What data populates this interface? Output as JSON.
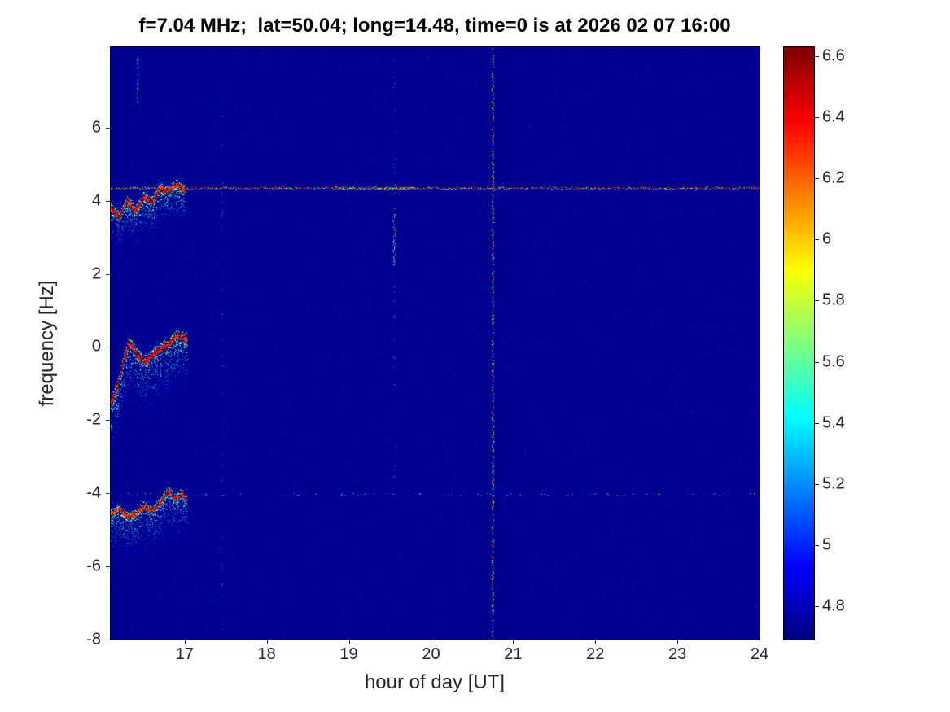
{
  "chart_data": {
    "type": "heatmap",
    "title": "f=7.04 MHz;  lat=50.04; long=14.48, time=0 is at 2026 02 07 16:00",
    "xlabel": "hour of day [UT]",
    "ylabel": "frequency [Hz]",
    "x_range": [
      16.1,
      24
    ],
    "y_range": [
      -8,
      8.2
    ],
    "x_ticks": [
      17,
      18,
      19,
      20,
      21,
      22,
      23,
      24
    ],
    "y_ticks": [
      -8,
      -6,
      -4,
      -2,
      0,
      2,
      4,
      6
    ],
    "grid": false,
    "colormap": "jet",
    "background_value": 4.72,
    "colorbar": {
      "position": "right",
      "range": [
        4.69,
        6.63
      ],
      "ticks": [
        4.8,
        5,
        5.2,
        5.4,
        5.6,
        5.8,
        6,
        6.2,
        6.4,
        6.6
      ]
    },
    "features": [
      {
        "kind": "noise",
        "density": 0.004,
        "v": [
          4.78,
          5.05
        ]
      },
      {
        "kind": "hline",
        "y": 4.35,
        "x0": 16.1,
        "x1": 24.0,
        "density": 0.93,
        "v": [
          5.6,
          6.6
        ],
        "vpow": 0.55,
        "jitter": 1.0
      },
      {
        "kind": "hline",
        "y": 4.35,
        "x0": 16.1,
        "x1": 24.0,
        "density": 0.28,
        "v": [
          4.9,
          5.7
        ],
        "vpow": 1.2,
        "jitter": 2.4
      },
      {
        "kind": "hline",
        "y": 4.35,
        "x0": 18.8,
        "x1": 19.8,
        "density": 0.85,
        "v": [
          5.3,
          6.3
        ],
        "vpow": 1.0,
        "jitter": 2.0
      },
      {
        "kind": "hline",
        "y": -4.02,
        "x0": 16.1,
        "x1": 24.0,
        "density": 0.22,
        "v": [
          4.85,
          5.9
        ],
        "vpow": 2.2,
        "jitter": 1.1
      },
      {
        "kind": "vline",
        "x": 20.75,
        "y0": -8.0,
        "y1": 8.2,
        "density": 0.8,
        "v": [
          4.9,
          6.6
        ],
        "vpow": 1.9,
        "jitter": 1.4
      },
      {
        "kind": "vline",
        "x": 20.75,
        "y0": -8.0,
        "y1": 8.2,
        "density": 0.28,
        "v": [
          5.9,
          6.6
        ],
        "vpow": 1.0,
        "jitter": 0.7
      },
      {
        "kind": "vline",
        "x": 19.55,
        "y0": 2.25,
        "y1": 3.65,
        "density": 0.7,
        "v": [
          5.0,
          6.05
        ],
        "vpow": 1.1,
        "jitter": 1.8
      },
      {
        "kind": "vline",
        "x": 19.55,
        "y0": -4.1,
        "y1": 2.25,
        "density": 0.13,
        "v": [
          4.85,
          5.5
        ],
        "vpow": 1.6,
        "jitter": 1.5
      },
      {
        "kind": "vline",
        "x": 19.55,
        "y0": 3.65,
        "y1": 7.9,
        "density": 0.16,
        "v": [
          4.85,
          5.5
        ],
        "vpow": 1.6,
        "jitter": 1.5
      },
      {
        "kind": "vline",
        "x": 17.45,
        "y0": -8.0,
        "y1": 8.2,
        "density": 0.1,
        "v": [
          4.85,
          5.35
        ],
        "vpow": 1.6,
        "jitter": 1.2
      },
      {
        "kind": "vline",
        "x": 16.42,
        "y0": 6.7,
        "y1": 7.9,
        "density": 0.55,
        "v": [
          5.0,
          5.9
        ],
        "vpow": 1.0,
        "jitter": 1.4
      },
      {
        "kind": "trace",
        "points": [
          [
            16.1,
            3.8
          ],
          [
            16.2,
            3.55
          ],
          [
            16.3,
            4.0
          ],
          [
            16.4,
            3.7
          ],
          [
            16.5,
            4.1
          ],
          [
            16.6,
            3.95
          ],
          [
            16.7,
            4.35
          ],
          [
            16.8,
            4.25
          ],
          [
            16.9,
            4.45
          ],
          [
            17.0,
            4.3
          ]
        ],
        "core_v": [
          6.05,
          6.6
        ],
        "core_h": 6,
        "core_n": 8,
        "fuzz_hz": 0.9,
        "fuzz_n": 10,
        "fuzz_density": 0.45,
        "fuzz_v": [
          4.85,
          5.8
        ]
      },
      {
        "kind": "trace",
        "points": [
          [
            16.1,
            -1.55
          ],
          [
            16.18,
            -1.1
          ],
          [
            16.26,
            -0.35
          ],
          [
            16.32,
            0.1
          ],
          [
            16.4,
            -0.15
          ],
          [
            16.5,
            -0.4
          ],
          [
            16.6,
            -0.25
          ],
          [
            16.7,
            -0.05
          ],
          [
            16.8,
            0.05
          ],
          [
            16.9,
            0.3
          ],
          [
            17.02,
            0.2
          ]
        ],
        "core_v": [
          6.05,
          6.6
        ],
        "core_h": 7,
        "core_n": 9,
        "fuzz_hz": 1.4,
        "fuzz_n": 14,
        "fuzz_density": 0.5,
        "fuzz_v": [
          4.85,
          5.8
        ]
      },
      {
        "kind": "trace",
        "points": [
          [
            16.1,
            -4.55
          ],
          [
            16.2,
            -4.45
          ],
          [
            16.3,
            -4.65
          ],
          [
            16.4,
            -4.55
          ],
          [
            16.5,
            -4.35
          ],
          [
            16.6,
            -4.5
          ],
          [
            16.7,
            -4.25
          ],
          [
            16.8,
            -3.95
          ],
          [
            16.88,
            -4.15
          ],
          [
            16.96,
            -4.0
          ],
          [
            17.02,
            -4.2
          ]
        ],
        "core_v": [
          6.0,
          6.55
        ],
        "core_h": 5,
        "core_n": 7,
        "fuzz_hz": 1.2,
        "fuzz_n": 12,
        "fuzz_density": 0.5,
        "fuzz_v": [
          4.85,
          5.7
        ]
      }
    ]
  }
}
